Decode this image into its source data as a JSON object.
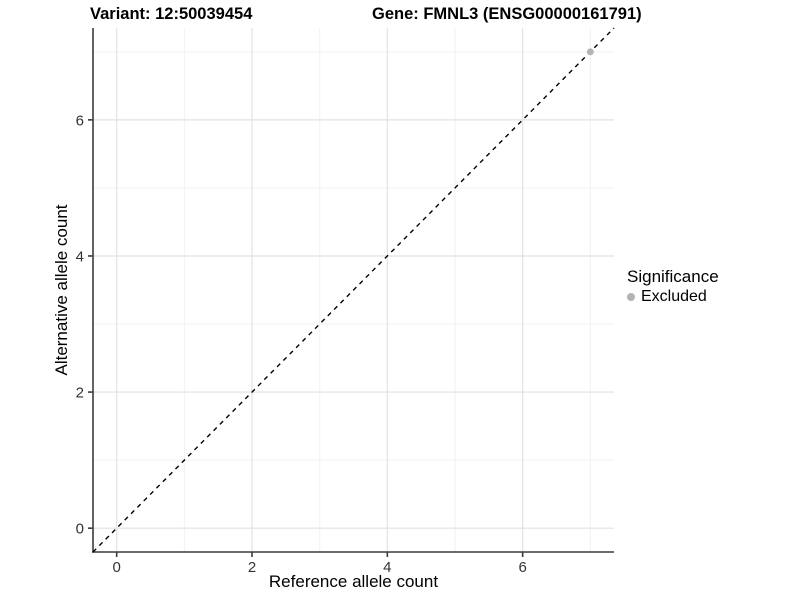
{
  "chart_data": {
    "type": "scatter",
    "titles": {
      "left": "Variant: 12:50039454",
      "right": "Gene: FMNL3 (ENSG00000161791)"
    },
    "xlabel": "Reference allele count",
    "ylabel": "Alternative allele count",
    "xlim": [
      -0.35,
      7.35
    ],
    "ylim": [
      -0.35,
      7.35
    ],
    "x_ticks": [
      0,
      2,
      4,
      6
    ],
    "y_ticks": [
      0,
      2,
      4,
      6
    ],
    "x_minor_ticks": [
      1,
      3,
      5,
      7
    ],
    "y_minor_ticks": [
      1,
      3,
      5,
      7
    ],
    "grid": "major+minor",
    "legend": {
      "title": "Significance",
      "position": "right",
      "entries": [
        {
          "label": "Excluded",
          "color": "#b3b3b3"
        }
      ]
    },
    "series": [
      {
        "name": "Excluded",
        "color": "#b3b3b3",
        "points": [
          {
            "x": 7,
            "y": 7
          }
        ]
      }
    ],
    "reference_line": {
      "type": "identity",
      "slope": 1,
      "intercept": 0,
      "linetype": "dashed",
      "color": "#000000"
    }
  },
  "colors": {
    "background": "#ffffff",
    "grid_major": "#e2e2e2",
    "grid_minor": "#f1f1f1",
    "axis_line": "#3c3c3c",
    "tick_label": "#333333"
  }
}
